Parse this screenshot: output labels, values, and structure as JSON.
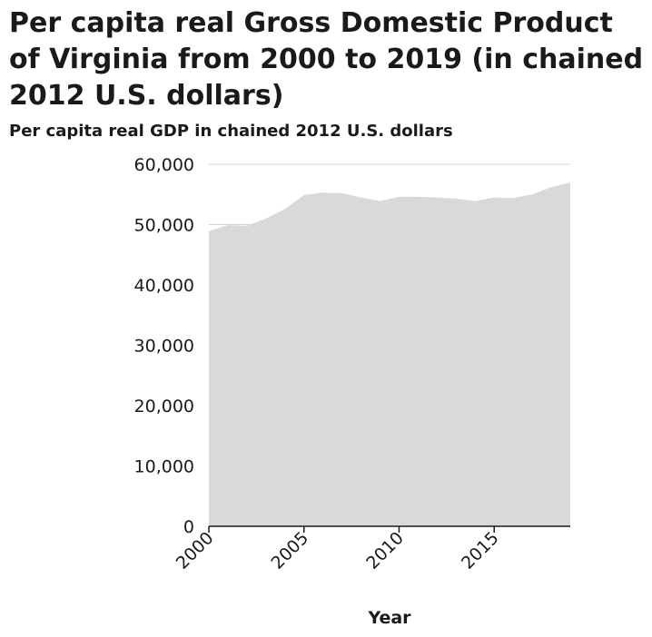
{
  "chart_data": {
    "type": "area",
    "title": "Per capita real Gross Domestic Product of Virginia from 2000 to 2019 (in chained 2012 U.S. dollars)",
    "ylabel": "Per capita real GDP in chained 2012 U.S. dollars",
    "xlabel": "Year",
    "x": [
      2000,
      2001,
      2002,
      2003,
      2004,
      2005,
      2006,
      2007,
      2008,
      2009,
      2010,
      2011,
      2012,
      2013,
      2014,
      2015,
      2016,
      2017,
      2018,
      2019
    ],
    "values": [
      48900,
      49900,
      49800,
      51000,
      52600,
      54900,
      55300,
      55200,
      54500,
      53900,
      54600,
      54600,
      54500,
      54300,
      53900,
      54500,
      54400,
      55000,
      56200,
      57000
    ],
    "xlim": [
      2000,
      2019
    ],
    "ylim": [
      0,
      60000
    ],
    "x_ticks": [
      "2000",
      "2005",
      "2010",
      "2015"
    ],
    "x_tick_values": [
      2000,
      2005,
      2010,
      2015
    ],
    "y_ticks": [
      "0",
      "10,000",
      "20,000",
      "30,000",
      "40,000",
      "50,000",
      "60,000"
    ],
    "y_tick_values": [
      0,
      10000,
      20000,
      30000,
      40000,
      50000,
      60000
    ],
    "fill_color": "#d9d9d9",
    "grid": "horizontal dashed",
    "legend": "none"
  }
}
